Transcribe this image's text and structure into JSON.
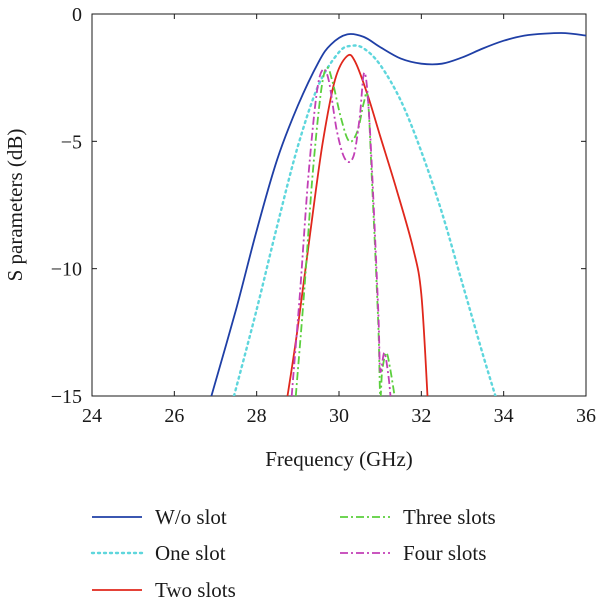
{
  "chart_data": {
    "type": "line",
    "title": "",
    "xlabel": "Frequency (GHz)",
    "ylabel": "S parameters (dB)",
    "xlim": [
      24,
      36
    ],
    "ylim": [
      -15,
      0
    ],
    "x_ticks": [
      24,
      26,
      28,
      30,
      32,
      34,
      36
    ],
    "y_ticks": [
      0,
      -5,
      -10,
      -15
    ],
    "x_tick_labels": [
      "24",
      "26",
      "28",
      "30",
      "32",
      "34",
      "36"
    ],
    "y_tick_labels": [
      "0",
      "−5",
      "−10",
      "−15"
    ],
    "grid": false,
    "legend_position": "below plot, two columns",
    "series": [
      {
        "name": "W/o slot",
        "color": "#1f3fa6",
        "style": "solid",
        "points": [
          [
            26.9,
            -15
          ],
          [
            27.5,
            -11.6
          ],
          [
            28.0,
            -8.5
          ],
          [
            28.5,
            -5.7
          ],
          [
            29.0,
            -3.6
          ],
          [
            29.5,
            -1.9
          ],
          [
            29.8,
            -1.2
          ],
          [
            30.2,
            -0.8
          ],
          [
            30.6,
            -0.9
          ],
          [
            31.0,
            -1.3
          ],
          [
            31.5,
            -1.75
          ],
          [
            32.0,
            -1.95
          ],
          [
            32.5,
            -1.95
          ],
          [
            33.0,
            -1.7
          ],
          [
            33.5,
            -1.35
          ],
          [
            34.0,
            -1.05
          ],
          [
            34.5,
            -0.85
          ],
          [
            35.0,
            -0.77
          ],
          [
            35.5,
            -0.75
          ],
          [
            36.0,
            -0.85
          ]
        ]
      },
      {
        "name": "One slot",
        "color": "#5ed6dc",
        "style": "dotted",
        "points": [
          [
            27.45,
            -15
          ],
          [
            28.0,
            -11.6
          ],
          [
            28.5,
            -8.3
          ],
          [
            29.0,
            -5.2
          ],
          [
            29.5,
            -2.8
          ],
          [
            30.0,
            -1.5
          ],
          [
            30.3,
            -1.25
          ],
          [
            30.6,
            -1.35
          ],
          [
            31.0,
            -2.0
          ],
          [
            31.5,
            -3.4
          ],
          [
            32.0,
            -5.4
          ],
          [
            32.5,
            -7.8
          ],
          [
            33.0,
            -10.6
          ],
          [
            33.5,
            -13.4
          ],
          [
            33.8,
            -15
          ]
        ]
      },
      {
        "name": "Two slots",
        "color": "#e0271c",
        "style": "solid",
        "points": [
          [
            28.75,
            -15
          ],
          [
            29.0,
            -12.3
          ],
          [
            29.3,
            -8.6
          ],
          [
            29.6,
            -5.1
          ],
          [
            29.9,
            -2.6
          ],
          [
            30.2,
            -1.65
          ],
          [
            30.4,
            -1.9
          ],
          [
            30.7,
            -3.2
          ],
          [
            31.0,
            -4.8
          ],
          [
            31.4,
            -6.9
          ],
          [
            31.8,
            -9.2
          ],
          [
            32.0,
            -11.0
          ],
          [
            32.15,
            -15
          ]
        ]
      },
      {
        "name": "Three slots",
        "color": "#5bcf3d",
        "style": "dashdot",
        "points": [
          [
            28.95,
            -15
          ],
          [
            29.15,
            -11.0
          ],
          [
            29.35,
            -6.5
          ],
          [
            29.55,
            -3.2
          ],
          [
            29.7,
            -2.1
          ],
          [
            29.85,
            -2.7
          ],
          [
            30.05,
            -4.1
          ],
          [
            30.25,
            -5.0
          ],
          [
            30.45,
            -4.6
          ],
          [
            30.6,
            -3.5
          ],
          [
            30.7,
            -3.3
          ],
          [
            30.8,
            -6.5
          ],
          [
            30.95,
            -12.0
          ],
          [
            31.0,
            -15
          ],
          [
            31.05,
            -14.0
          ],
          [
            31.15,
            -13.3
          ],
          [
            31.25,
            -14.0
          ],
          [
            31.35,
            -15
          ]
        ]
      },
      {
        "name": "Four slots",
        "color": "#c23fb6",
        "style": "dashdot",
        "points": [
          [
            28.85,
            -15
          ],
          [
            29.05,
            -11.0
          ],
          [
            29.25,
            -6.5
          ],
          [
            29.45,
            -3.2
          ],
          [
            29.6,
            -2.2
          ],
          [
            29.75,
            -2.6
          ],
          [
            29.95,
            -4.6
          ],
          [
            30.15,
            -5.7
          ],
          [
            30.35,
            -5.6
          ],
          [
            30.5,
            -4.1
          ],
          [
            30.62,
            -2.3
          ],
          [
            30.75,
            -4.5
          ],
          [
            30.95,
            -11.5
          ],
          [
            31.0,
            -14.0
          ],
          [
            31.1,
            -13.3
          ],
          [
            31.2,
            -14.2
          ],
          [
            31.25,
            -15
          ]
        ]
      }
    ]
  }
}
